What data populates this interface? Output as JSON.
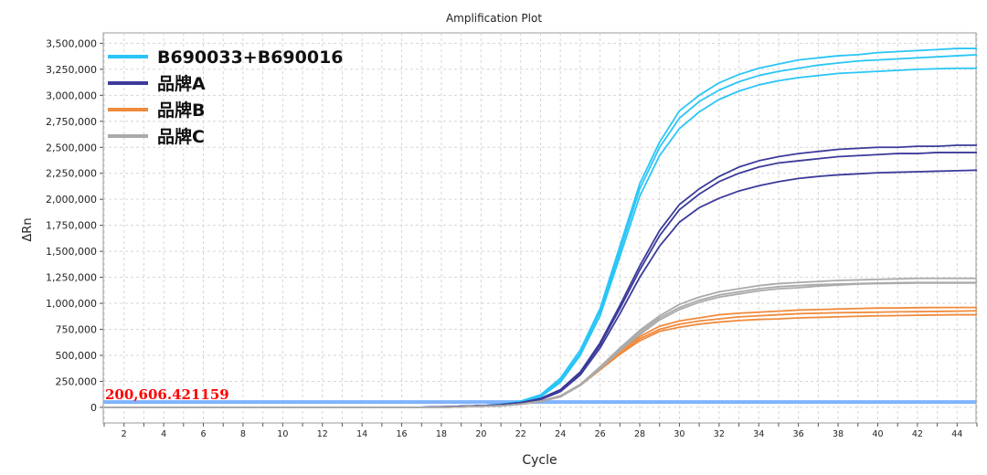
{
  "chart_data": {
    "type": "line",
    "title": "Amplification Plot",
    "xlabel": "Cycle",
    "ylabel": "ΔRn",
    "xlim": [
      1,
      45
    ],
    "ylim": [
      -150000,
      3600000
    ],
    "x_ticks": [
      "2",
      "4",
      "6",
      "8",
      "10",
      "12",
      "14",
      "16",
      "18",
      "20",
      "22",
      "24",
      "26",
      "28",
      "30",
      "32",
      "34",
      "36",
      "38",
      "40",
      "42",
      "44"
    ],
    "y_ticks": [
      "0",
      "250,000",
      "500,000",
      "750,000",
      "1,000,000",
      "1,250,000",
      "1,500,000",
      "1,750,000",
      "2,000,000",
      "2,250,000",
      "2,500,000",
      "2,750,000",
      "3,000,000",
      "3,250,000",
      "3,500,000"
    ],
    "grid": true,
    "legend_position": "top-left",
    "legend": [
      {
        "name": "B690033+B690016",
        "color": "#29c5f6"
      },
      {
        "name": "品牌A",
        "color": "#3b3b9a"
      },
      {
        "name": "品牌B",
        "color": "#f08a3c"
      },
      {
        "name": "品牌C",
        "color": "#aaaaaa"
      }
    ],
    "threshold": {
      "label": "200,606.421159",
      "value": 200606.421159,
      "color": "#7fb3ff",
      "label_color": "#ff0000"
    },
    "x": [
      1,
      2,
      3,
      4,
      5,
      6,
      7,
      8,
      9,
      10,
      11,
      12,
      13,
      14,
      15,
      16,
      17,
      18,
      19,
      20,
      21,
      22,
      23,
      24,
      25,
      26,
      27,
      28,
      29,
      30,
      31,
      32,
      33,
      34,
      35,
      36,
      37,
      38,
      39,
      40,
      41,
      42,
      43,
      44,
      45
    ],
    "series": [
      {
        "group": "B690033+B690016",
        "color": "#29c5f6",
        "values": [
          0,
          0,
          0,
          0,
          0,
          0,
          0,
          0,
          0,
          0,
          0,
          0,
          0,
          0,
          0,
          0,
          0,
          5000,
          10000,
          15000,
          30000,
          60000,
          120000,
          280000,
          550000,
          950000,
          1550000,
          2150000,
          2550000,
          2850000,
          3000000,
          3120000,
          3200000,
          3260000,
          3300000,
          3340000,
          3360000,
          3380000,
          3390000,
          3410000,
          3420000,
          3430000,
          3440000,
          3450000,
          3450000
        ]
      },
      {
        "group": "B690033+B690016",
        "color": "#29c5f6",
        "values": [
          0,
          0,
          0,
          0,
          0,
          0,
          0,
          0,
          0,
          0,
          0,
          0,
          0,
          0,
          0,
          0,
          0,
          5000,
          10000,
          15000,
          28000,
          55000,
          110000,
          260000,
          520000,
          920000,
          1500000,
          2100000,
          2500000,
          2780000,
          2940000,
          3050000,
          3130000,
          3190000,
          3230000,
          3260000,
          3290000,
          3310000,
          3330000,
          3340000,
          3350000,
          3360000,
          3370000,
          3380000,
          3390000
        ]
      },
      {
        "group": "B690033+B690016",
        "color": "#29c5f6",
        "values": [
          0,
          0,
          0,
          0,
          0,
          0,
          0,
          0,
          0,
          0,
          0,
          0,
          0,
          0,
          0,
          0,
          0,
          5000,
          10000,
          15000,
          25000,
          50000,
          100000,
          240000,
          500000,
          880000,
          1450000,
          2030000,
          2420000,
          2680000,
          2840000,
          2960000,
          3040000,
          3100000,
          3140000,
          3170000,
          3190000,
          3210000,
          3220000,
          3230000,
          3240000,
          3250000,
          3255000,
          3260000,
          3260000
        ]
      },
      {
        "group": "品牌A",
        "color": "#3b3b9a",
        "values": [
          0,
          0,
          0,
          0,
          0,
          0,
          0,
          0,
          0,
          0,
          0,
          0,
          0,
          0,
          0,
          0,
          0,
          5000,
          10000,
          15000,
          25000,
          45000,
          85000,
          170000,
          340000,
          620000,
          980000,
          1360000,
          1700000,
          1950000,
          2100000,
          2220000,
          2310000,
          2370000,
          2410000,
          2440000,
          2460000,
          2480000,
          2490000,
          2500000,
          2500000,
          2510000,
          2510000,
          2520000,
          2520000
        ]
      },
      {
        "group": "品牌A",
        "color": "#3b3b9a",
        "values": [
          0,
          0,
          0,
          0,
          0,
          0,
          0,
          0,
          0,
          0,
          0,
          0,
          0,
          0,
          0,
          0,
          0,
          5000,
          10000,
          15000,
          25000,
          45000,
          80000,
          160000,
          330000,
          600000,
          950000,
          1320000,
          1650000,
          1900000,
          2050000,
          2170000,
          2250000,
          2310000,
          2350000,
          2370000,
          2390000,
          2410000,
          2420000,
          2430000,
          2440000,
          2440000,
          2450000,
          2450000,
          2450000
        ]
      },
      {
        "group": "品牌A",
        "color": "#3b3b9a",
        "values": [
          0,
          0,
          0,
          0,
          0,
          0,
          0,
          0,
          0,
          0,
          0,
          0,
          0,
          0,
          0,
          0,
          0,
          5000,
          10000,
          15000,
          20000,
          40000,
          75000,
          150000,
          310000,
          570000,
          900000,
          1250000,
          1550000,
          1780000,
          1920000,
          2010000,
          2080000,
          2130000,
          2170000,
          2200000,
          2220000,
          2235000,
          2245000,
          2255000,
          2260000,
          2265000,
          2270000,
          2275000,
          2280000
        ]
      },
      {
        "group": "品牌B",
        "color": "#f08a3c",
        "values": [
          0,
          0,
          0,
          0,
          0,
          0,
          0,
          0,
          0,
          0,
          0,
          0,
          0,
          0,
          0,
          0,
          0,
          0,
          5000,
          10000,
          15000,
          30000,
          60000,
          110000,
          220000,
          380000,
          540000,
          680000,
          780000,
          830000,
          860000,
          890000,
          905000,
          915000,
          925000,
          935000,
          940000,
          945000,
          950000,
          955000,
          955000,
          958000,
          960000,
          960000,
          960000
        ]
      },
      {
        "group": "品牌B",
        "color": "#f08a3c",
        "values": [
          0,
          0,
          0,
          0,
          0,
          0,
          0,
          0,
          0,
          0,
          0,
          0,
          0,
          0,
          0,
          0,
          0,
          0,
          5000,
          10000,
          15000,
          30000,
          60000,
          110000,
          215000,
          370000,
          520000,
          660000,
          750000,
          800000,
          830000,
          850000,
          870000,
          880000,
          890000,
          900000,
          905000,
          910000,
          912000,
          915000,
          918000,
          920000,
          922000,
          925000,
          928000
        ]
      },
      {
        "group": "品牌B",
        "color": "#f08a3c",
        "values": [
          0,
          0,
          0,
          0,
          0,
          0,
          0,
          0,
          0,
          0,
          0,
          0,
          0,
          0,
          0,
          0,
          0,
          0,
          5000,
          10000,
          15000,
          30000,
          55000,
          105000,
          210000,
          360000,
          510000,
          640000,
          730000,
          770000,
          800000,
          820000,
          835000,
          845000,
          850000,
          860000,
          865000,
          870000,
          875000,
          880000,
          882000,
          885000,
          888000,
          890000,
          890000
        ]
      },
      {
        "group": "品牌C",
        "color": "#aaaaaa",
        "values": [
          0,
          0,
          0,
          0,
          0,
          0,
          0,
          0,
          0,
          0,
          0,
          0,
          0,
          0,
          0,
          0,
          0,
          0,
          5000,
          10000,
          15000,
          30000,
          60000,
          110000,
          220000,
          390000,
          570000,
          740000,
          880000,
          990000,
          1060000,
          1110000,
          1140000,
          1170000,
          1190000,
          1200000,
          1210000,
          1220000,
          1225000,
          1230000,
          1235000,
          1240000,
          1240000,
          1240000,
          1240000
        ]
      },
      {
        "group": "品牌C",
        "color": "#aaaaaa",
        "values": [
          0,
          0,
          0,
          0,
          0,
          0,
          0,
          0,
          0,
          0,
          0,
          0,
          0,
          0,
          0,
          0,
          0,
          0,
          5000,
          10000,
          15000,
          30000,
          58000,
          105000,
          215000,
          380000,
          560000,
          720000,
          860000,
          960000,
          1030000,
          1080000,
          1110000,
          1140000,
          1160000,
          1170000,
          1180000,
          1185000,
          1190000,
          1195000,
          1198000,
          1200000,
          1200000,
          1200000,
          1200000
        ]
      },
      {
        "group": "品牌C",
        "color": "#aaaaaa",
        "values": [
          0,
          0,
          0,
          0,
          0,
          0,
          0,
          0,
          0,
          0,
          0,
          0,
          0,
          0,
          0,
          0,
          0,
          0,
          5000,
          10000,
          15000,
          30000,
          56000,
          100000,
          210000,
          370000,
          545000,
          700000,
          840000,
          940000,
          1010000,
          1060000,
          1090000,
          1120000,
          1140000,
          1150000,
          1165000,
          1175000,
          1185000,
          1190000,
          1192000,
          1195000,
          1195000,
          1195000,
          1195000
        ]
      }
    ]
  }
}
